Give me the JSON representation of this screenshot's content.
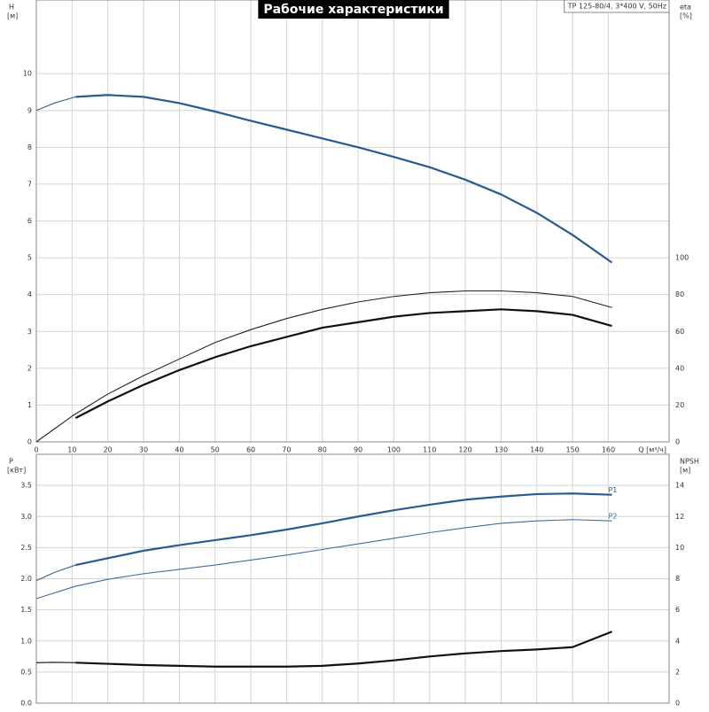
{
  "chart_data": [
    {
      "type": "line",
      "title": "Рабочие характеристики",
      "annotation": "TP 125-80/4, 3*400 V, 50Hz",
      "ylabel": "H",
      "yunit": "[м]",
      "y2label": "eta",
      "y2unit": "[%]",
      "xlabel": "Q [м³/ч]",
      "xlim": [
        0,
        177
      ],
      "xticks": [
        0,
        10,
        20,
        30,
        40,
        50,
        60,
        70,
        80,
        90,
        100,
        110,
        120,
        130,
        140,
        150,
        160
      ],
      "ylim": [
        0,
        12
      ],
      "yticks": [
        0,
        1,
        2,
        3,
        4,
        5,
        6,
        7,
        8,
        9,
        10
      ],
      "y2lim": [
        0,
        240
      ],
      "y2ticks": [
        0,
        20,
        40,
        60,
        80,
        100
      ],
      "grid": true,
      "series": [
        {
          "color": "#3d5f86",
          "width": 1,
          "x": [
            0,
            5,
            11
          ],
          "values": [
            9.0,
            9.2,
            9.37
          ]
        },
        {
          "color": "#2a5a90",
          "width": 2,
          "x": [
            11,
            20,
            30,
            40,
            50,
            60,
            70,
            80,
            90,
            100,
            110,
            120,
            130,
            140,
            150,
            161
          ],
          "values": [
            9.37,
            9.42,
            9.37,
            9.2,
            8.97,
            8.72,
            8.48,
            8.24,
            8.0,
            7.74,
            7.46,
            7.12,
            6.72,
            6.22,
            5.62,
            4.87
          ]
        },
        {
          "color": "#222222",
          "width": 1,
          "axis": "y2",
          "x": [
            0,
            10,
            20,
            30,
            40,
            50,
            60,
            70,
            80,
            90,
            100,
            110,
            120,
            130,
            140,
            150,
            161
          ],
          "values": [
            0,
            14,
            26,
            36,
            45,
            54,
            61,
            67,
            72,
            76,
            79,
            81,
            82,
            82,
            81,
            79,
            73
          ]
        },
        {
          "color": "#111111",
          "width": 2,
          "axis": "y2",
          "x": [
            11,
            20,
            30,
            40,
            50,
            60,
            70,
            80,
            90,
            100,
            110,
            120,
            130,
            140,
            150,
            161
          ],
          "values": [
            13,
            22,
            31,
            39,
            46,
            52,
            57,
            62,
            65,
            68,
            70,
            71,
            72,
            71,
            69,
            63
          ]
        }
      ]
    },
    {
      "type": "line",
      "ylabel": "P",
      "yunit": "[кВт]",
      "y2label": "NPSH",
      "y2unit": "[м]",
      "xlim": [
        0,
        177
      ],
      "ylim": [
        0,
        4.0
      ],
      "yticks": [
        {
          "value": 0,
          "label": "0.0"
        },
        0.5,
        {
          "value": 1,
          "label": "1.0"
        },
        1.5,
        {
          "value": 2,
          "label": "2.0"
        },
        2.5,
        {
          "value": 3,
          "label": "3.0"
        },
        3.5
      ],
      "y2lim": [
        0,
        16
      ],
      "y2ticks": [
        0,
        2,
        4,
        6,
        8,
        10,
        12,
        14
      ],
      "grid": true,
      "series": [
        {
          "color": "#3d5f86",
          "width": 1,
          "x": [
            0,
            5,
            11
          ],
          "values": [
            1.97,
            2.1,
            2.22
          ]
        },
        {
          "name": "P1",
          "color": "#2a5a90",
          "width": 2,
          "x": [
            11,
            20,
            30,
            40,
            50,
            60,
            70,
            80,
            90,
            100,
            110,
            120,
            130,
            140,
            150,
            161
          ],
          "values": [
            2.22,
            2.33,
            2.45,
            2.54,
            2.62,
            2.7,
            2.79,
            2.89,
            3.0,
            3.1,
            3.19,
            3.27,
            3.32,
            3.36,
            3.37,
            3.35
          ]
        },
        {
          "name": "P2",
          "color": "#3d6c9e",
          "width": 1,
          "x": [
            0,
            11,
            20,
            30,
            40,
            50,
            60,
            70,
            80,
            90,
            100,
            110,
            120,
            130,
            140,
            150,
            161
          ],
          "values": [
            1.68,
            1.88,
            1.99,
            2.08,
            2.15,
            2.22,
            2.3,
            2.38,
            2.47,
            2.56,
            2.65,
            2.74,
            2.82,
            2.89,
            2.93,
            2.95,
            2.93
          ]
        },
        {
          "color": "#111111",
          "width": 1,
          "axis": "y2",
          "x": [
            0,
            5,
            11
          ],
          "values": [
            2.6,
            2.62,
            2.6
          ]
        },
        {
          "color": "#111111",
          "width": 2,
          "axis": "y2",
          "x": [
            11,
            30,
            50,
            70,
            80,
            90,
            100,
            110,
            120,
            130,
            140,
            150,
            161
          ],
          "values": [
            2.6,
            2.45,
            2.35,
            2.35,
            2.4,
            2.55,
            2.75,
            3.0,
            3.2,
            3.35,
            3.45,
            3.6,
            4.6
          ]
        }
      ]
    }
  ]
}
